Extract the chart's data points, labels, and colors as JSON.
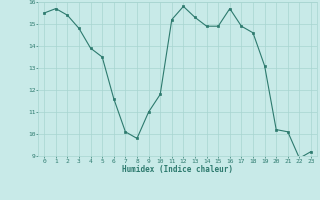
{
  "x": [
    0,
    1,
    2,
    3,
    4,
    5,
    6,
    7,
    8,
    9,
    10,
    11,
    12,
    13,
    14,
    15,
    16,
    17,
    18,
    19,
    20,
    21,
    22,
    23
  ],
  "y": [
    15.5,
    15.7,
    15.4,
    14.8,
    13.9,
    13.5,
    11.6,
    10.1,
    9.8,
    11.0,
    11.8,
    15.2,
    15.8,
    15.3,
    14.9,
    14.9,
    15.7,
    14.9,
    14.6,
    13.1,
    10.2,
    10.1,
    8.9,
    9.2
  ],
  "xlabel": "Humidex (Indice chaleur)",
  "ylim": [
    9,
    16
  ],
  "xlim": [
    -0.5,
    23.5
  ],
  "yticks": [
    9,
    10,
    11,
    12,
    13,
    14,
    15,
    16
  ],
  "xticks": [
    0,
    1,
    2,
    3,
    4,
    5,
    6,
    7,
    8,
    9,
    10,
    11,
    12,
    13,
    14,
    15,
    16,
    17,
    18,
    19,
    20,
    21,
    22,
    23
  ],
  "line_color": "#2d7a6e",
  "marker_color": "#2d7a6e",
  "bg_color": "#c8eae8",
  "grid_color": "#a8d5d0",
  "tick_color": "#2d7a6e",
  "label_color": "#2d7a6e"
}
